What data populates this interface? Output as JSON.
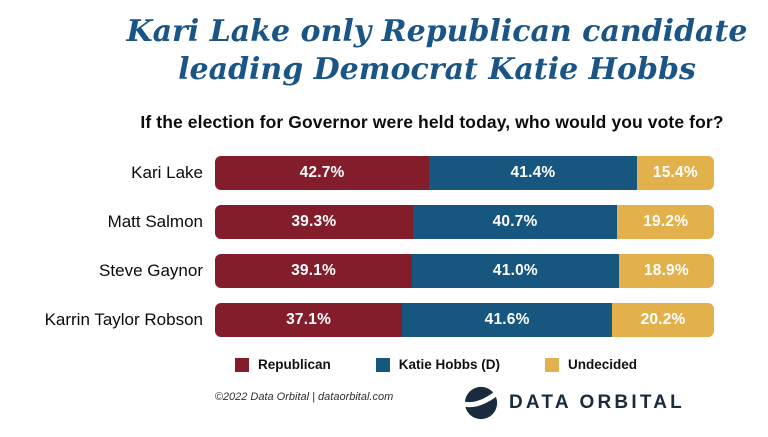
{
  "title": {
    "line1": "Kari Lake only Republican candidate",
    "line2": "leading Democrat Katie Hobbs"
  },
  "question": "If the election for Governor were held today, who would you vote for?",
  "chart_data": {
    "type": "bar",
    "orientation": "horizontal",
    "stacked": true,
    "normalized_to_full_width": true,
    "title": "If the election for Governor were held today, who would you vote for?",
    "categories": [
      "Kari Lake",
      "Matt Salmon",
      "Steve Gaynor",
      "Karrin Taylor Robson"
    ],
    "series": [
      {
        "name": "Republican",
        "color": "#831D2C",
        "values": [
          42.7,
          39.3,
          39.1,
          37.1
        ]
      },
      {
        "name": "Katie Hobbs (D)",
        "color": "#16567F",
        "values": [
          41.4,
          40.7,
          41.0,
          41.6
        ]
      },
      {
        "name": "Undecided",
        "color": "#E3B14C",
        "values": [
          15.4,
          19.2,
          18.9,
          20.2
        ]
      }
    ],
    "value_format": "percent_one_decimal",
    "value_labels_inside": true,
    "legend_position": "bottom",
    "grid": false
  },
  "footer": {
    "copyright_text": "©2022 Data Orbital | dataorbital.com",
    "logo_text": "DATA ORBITAL",
    "logo_icon": "data-orbital-sphere-icon"
  },
  "colors": {
    "title_blue": "#1A5585",
    "republican_red": "#831D2C",
    "hobbs_blue": "#16567F",
    "undecided_gold": "#E3B14C",
    "logo_navy": "#1B2B3E",
    "background": "#FFFFFF"
  }
}
